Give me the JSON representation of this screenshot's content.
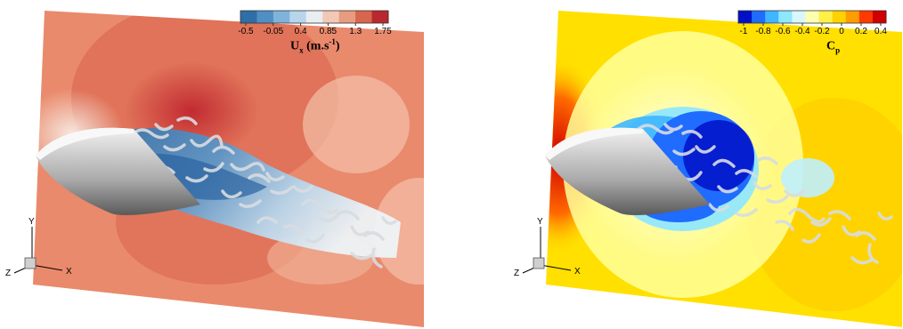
{
  "panels": [
    {
      "id": "ux",
      "colorbar": {
        "ticks": [
          "-0.5",
          "-0.05",
          "0.4",
          "0.85",
          "1.3",
          "1.75"
        ],
        "colors": [
          "#2f6ea6",
          "#4f8fc4",
          "#7fb3da",
          "#b7d6ec",
          "#e9eef3",
          "#f2c9b6",
          "#e79b7f",
          "#d8654d",
          "#b9282e"
        ]
      },
      "title_main": "U",
      "title_sub": "x",
      "title_unit_prefix": " (m.s",
      "title_unit_sup": "-1",
      "title_unit_suffix": ")",
      "axis_labels": {
        "y": "Y",
        "z": "Z",
        "x": "X"
      }
    },
    {
      "id": "cp",
      "colorbar": {
        "ticks": [
          "-1",
          "-0.8",
          "-0.6",
          "-0.4",
          "-0.2",
          "0",
          "0.2",
          "0.4"
        ],
        "colors": [
          "#0010c8",
          "#1f6cff",
          "#3fb6ff",
          "#8de7ff",
          "#d8f7ff",
          "#ffffb0",
          "#fff14a",
          "#ffd200",
          "#ff9c00",
          "#ff3a00",
          "#d00000"
        ]
      },
      "title_main": "C",
      "title_sub": "p",
      "title_unit_prefix": "",
      "title_unit_sup": "",
      "title_unit_suffix": "",
      "axis_labels": {
        "y": "Y",
        "z": "Z",
        "x": "X"
      }
    }
  ]
}
